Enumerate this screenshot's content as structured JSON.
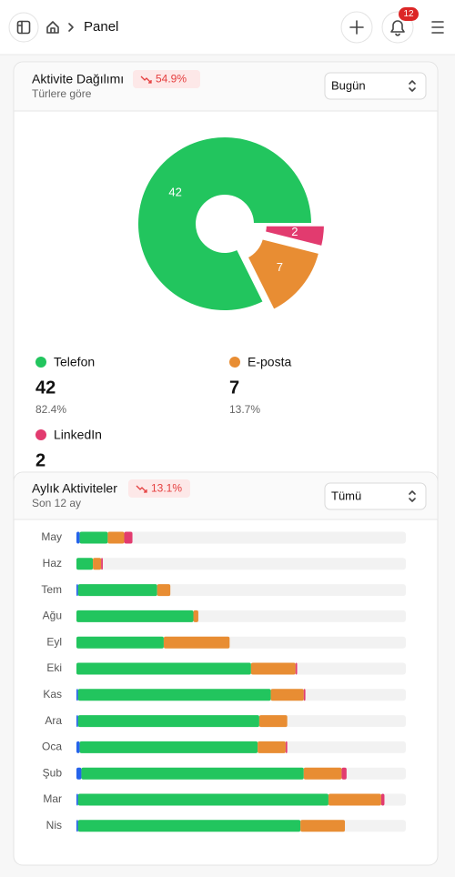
{
  "header": {
    "breadcrumb": "Panel",
    "notifications": 12
  },
  "chart_data": [
    {
      "type": "pie",
      "title": "Aktivite Dağılımı",
      "subtitle": "Türlere göre",
      "change": "54.9%",
      "filter": "Bugün",
      "categories": [
        "Telefon",
        "E-posta",
        "LinkedIn"
      ],
      "values": [
        42,
        7,
        2
      ],
      "colors": [
        "#22c55e",
        "#e88d33",
        "#e23b6f"
      ],
      "share_labels": [
        "82.4%",
        "13.7%",
        null
      ]
    },
    {
      "type": "stacked_bar",
      "title": "Aylık Aktiviteler",
      "subtitle": "Son 12 ay",
      "change": "13.1%",
      "filter": "Tümü",
      "categories": [
        "May",
        "Haz",
        "Tem",
        "Ağu",
        "Eyl",
        "Eki",
        "Kas",
        "Ara",
        "Oca",
        "Şub",
        "Mar",
        "Nis"
      ],
      "xlim": [
        0,
        100
      ],
      "series": [
        {
          "color": "#2563eb",
          "values": [
            1,
            0,
            0.5,
            0,
            0,
            0,
            0.5,
            0.5,
            1,
            1.5,
            0.5,
            0.5
          ]
        },
        {
          "color": "#22c55e",
          "values": [
            8.5,
            5,
            24,
            35.5,
            26.5,
            53,
            58.5,
            55,
            54,
            67.5,
            76,
            67.5
          ]
        },
        {
          "color": "#e88d33",
          "values": [
            5,
            2.5,
            4,
            1.5,
            20,
            13.5,
            10,
            8.5,
            8.5,
            11.5,
            16,
            13.5
          ]
        },
        {
          "color": "#e23b6f",
          "values": [
            2.5,
            0.5,
            0,
            0,
            0,
            0.5,
            0.5,
            0,
            0.5,
            1.5,
            1,
            0
          ]
        }
      ]
    }
  ]
}
